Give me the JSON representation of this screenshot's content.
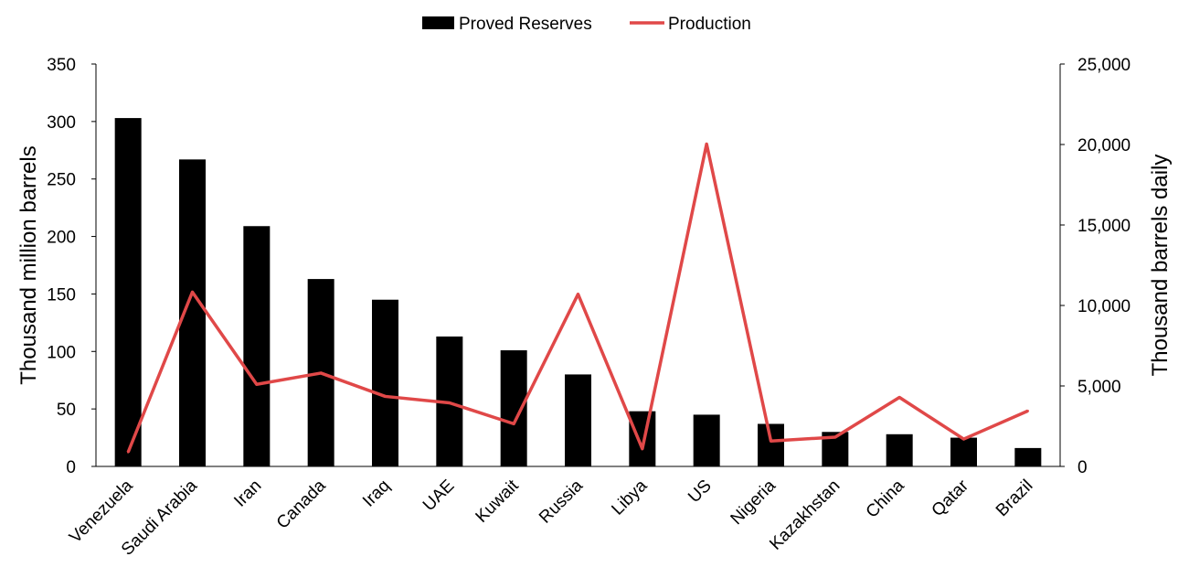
{
  "chart_data": {
    "type": "bar",
    "categories": [
      "Venezuela",
      "Saudi Arabia",
      "Iran",
      "Canada",
      "Iraq",
      "UAE",
      "Kuwait",
      "Russia",
      "Libya",
      "US",
      "Nigeria",
      "Kazakhstan",
      "China",
      "Qatar",
      "Brazil"
    ],
    "series": [
      {
        "name": "Proved Reserves",
        "type": "bar",
        "axis": "left",
        "color": "#000000",
        "values": [
          303,
          267,
          209,
          163,
          145,
          113,
          101,
          80,
          48,
          45,
          37,
          30,
          28,
          25,
          16
        ]
      },
      {
        "name": "Production",
        "type": "line",
        "axis": "right",
        "color": "#e04848",
        "values": [
          880,
          10830,
          5100,
          5800,
          4350,
          3950,
          2650,
          10700,
          1100,
          20030,
          1580,
          1820,
          4290,
          1700,
          3450
        ]
      }
    ],
    "ylabel": "Thousand million barrels",
    "ylabel_right": "Thousand barrels daily",
    "ylim": [
      0,
      350
    ],
    "ylim_right": [
      0,
      25000
    ],
    "yticks": [
      "0",
      "50",
      "100",
      "150",
      "200",
      "250",
      "300",
      "350"
    ],
    "yticks_right": [
      "0",
      "5,000",
      "10,000",
      "15,000",
      "20,000",
      "25,000"
    ],
    "legend_position": "top-center",
    "grid": false
  }
}
